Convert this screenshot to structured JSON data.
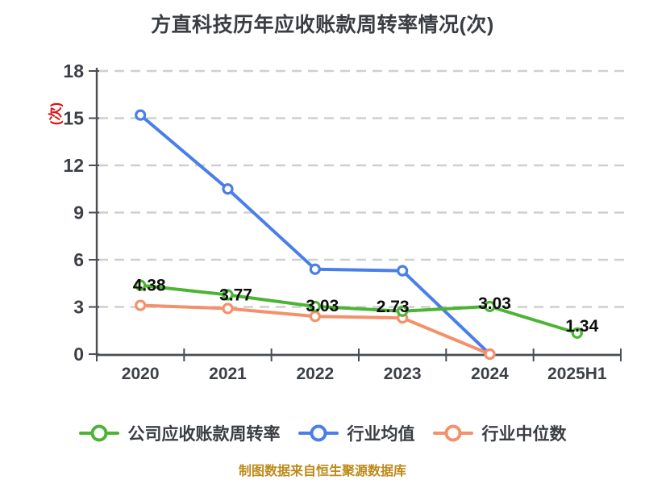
{
  "title": "方直科技历年应收账款周转率情况(次)",
  "y_axis_unit_label": "(次)",
  "footer_note": "制图数据来自恒生聚源数据库",
  "colors": {
    "title": "#3a3d42",
    "axis": "#4a4d52",
    "grid": "#cfcfcf",
    "tick_label": "#3c4046",
    "data_label": "#0d0d0d",
    "unit_label": "#e01212",
    "footer": "#bd8a1a",
    "company_series": "#4cb434",
    "industry_avg_series": "#4a7ee8",
    "industry_median_series": "#f4916b",
    "marker_fill": "#ffffff"
  },
  "chart_data": {
    "type": "line",
    "title": "方直科技历年应收账款周转率情况(次)",
    "categories": [
      "2020",
      "2021",
      "2022",
      "2023",
      "2024",
      "2025H1"
    ],
    "y_ticks": [
      0,
      3,
      6,
      9,
      12,
      15,
      18
    ],
    "ylim": [
      0,
      18
    ],
    "xlabel": "",
    "ylabel": "(次)",
    "grid": "horizontal-dashed",
    "legend_position": "bottom",
    "series": [
      {
        "name": "公司应收账款周转率",
        "color": "#4cb434",
        "values": [
          4.38,
          3.77,
          3.03,
          2.73,
          3.03,
          1.34
        ],
        "labels": [
          "4.38",
          "3.77",
          "3.03",
          "2.73",
          "3.03",
          "1.34"
        ]
      },
      {
        "name": "行业均值",
        "color": "#4a7ee8",
        "values": [
          15.2,
          10.5,
          5.4,
          5.3,
          0,
          null
        ]
      },
      {
        "name": "行业中位数",
        "color": "#f4916b",
        "values": [
          3.1,
          2.9,
          2.4,
          2.3,
          0,
          null
        ]
      }
    ]
  }
}
